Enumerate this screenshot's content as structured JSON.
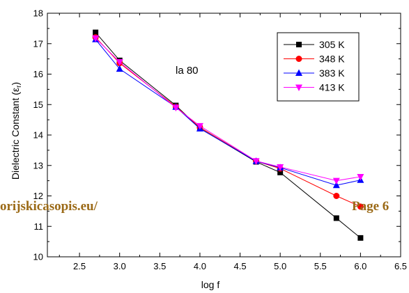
{
  "chart_data": {
    "type": "line",
    "title": "",
    "xlabel": "log f",
    "ylabel": "Dielectric Constant (ε",
    "ylabel_sub": "r",
    "ylabel_end": ")",
    "xlim": [
      2.1,
      6.5
    ],
    "ylim": [
      10,
      18
    ],
    "x_ticks": [
      2.5,
      3.0,
      3.5,
      4.0,
      4.5,
      5.0,
      5.5,
      6.0,
      6.5
    ],
    "x_tick_labels": [
      "2.5",
      "3.0",
      "3.5",
      "4.0",
      "4.5",
      "5.0",
      "5.5",
      "6.0",
      "6.5"
    ],
    "y_ticks": [
      10,
      11,
      12,
      13,
      14,
      15,
      16,
      17,
      18
    ],
    "y_tick_labels": [
      "10",
      "11",
      "12",
      "13",
      "14",
      "15",
      "16",
      "17",
      "18"
    ],
    "annotation": "la 80",
    "legend_position": "top-right",
    "x": [
      2.7,
      3.0,
      3.7,
      4.0,
      4.7,
      5.0,
      5.7,
      6.0
    ],
    "series": [
      {
        "name": "305 K",
        "color": "#000000",
        "marker": "square",
        "values": [
          17.37,
          16.45,
          14.97,
          14.22,
          13.12,
          12.77,
          11.27,
          10.62
        ]
      },
      {
        "name": "348 K",
        "color": "#ff0000",
        "marker": "circle",
        "values": [
          17.21,
          16.36,
          14.93,
          14.25,
          13.14,
          12.9,
          12.0,
          11.65
        ]
      },
      {
        "name": "383 K",
        "color": "#0000ff",
        "marker": "triangle-up",
        "values": [
          17.14,
          16.17,
          14.92,
          14.21,
          13.14,
          12.93,
          12.35,
          12.52
        ]
      },
      {
        "name": "413 K",
        "color": "#ff00ff",
        "marker": "triangle-down",
        "values": [
          17.18,
          16.4,
          14.9,
          14.3,
          13.15,
          12.95,
          12.5,
          12.63
        ]
      }
    ]
  },
  "watermark": {
    "left_text": "orijskicasopis.eu/",
    "right_text": "Page 6"
  }
}
